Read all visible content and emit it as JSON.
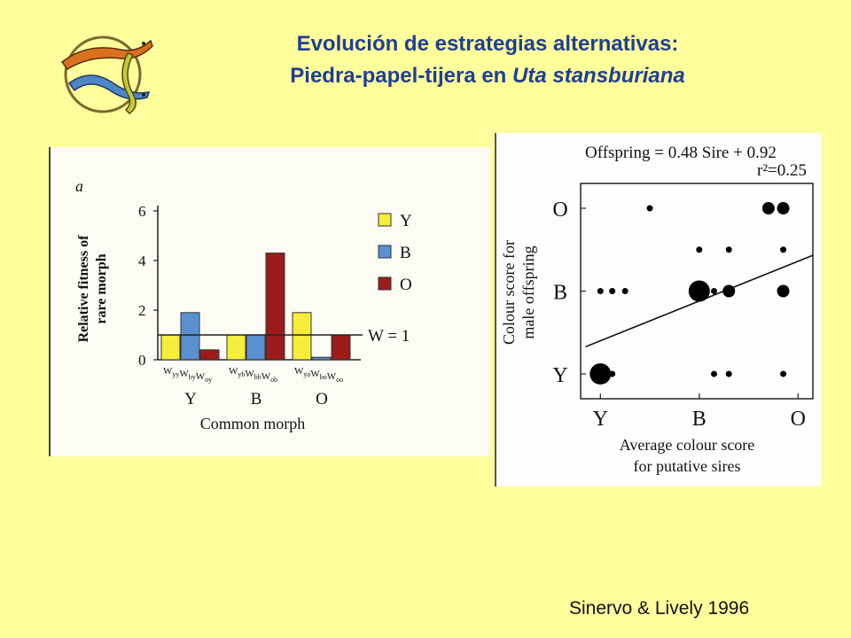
{
  "slide": {
    "title_line1": "Evolución de estrategias alternativas:",
    "title_line2_prefix": "Piedra-papel-tijera en ",
    "title_line2_species": "Uta stansburiana",
    "credit": "Sinervo & Lively 1996",
    "logo_icon": "lizards-logo-icon"
  },
  "chart_data": [
    {
      "type": "bar",
      "panel_label": "a",
      "ylabel_line1": "Relative fitness of",
      "ylabel_line2": "rare morph",
      "xlabel": "Common morph",
      "ylim": [
        0,
        6
      ],
      "yticks": [
        0,
        2,
        4,
        6
      ],
      "groups": [
        "Y",
        "B",
        "O"
      ],
      "bar_labels": [
        [
          "W",
          "yy",
          "W",
          "by",
          "W",
          "oy"
        ],
        [
          "W",
          "yb",
          "W",
          "bb",
          "W",
          "ob"
        ],
        [
          "W",
          "yo",
          "W",
          "bo",
          "W",
          "oo"
        ]
      ],
      "series": [
        {
          "name": "Y",
          "color": "#f6ec3a",
          "values": [
            1.0,
            1.0,
            1.9
          ]
        },
        {
          "name": "B",
          "color": "#5b8fd0",
          "values": [
            1.9,
            1.0,
            0.1
          ]
        },
        {
          "name": "O",
          "color": "#9b1b1b",
          "values": [
            0.4,
            4.3,
            1.0
          ]
        }
      ],
      "reference_line": {
        "value": 1,
        "label": "W = 1"
      }
    },
    {
      "type": "scatter",
      "equation_line1": "Offspring = 0.48 Sire + 0.92",
      "equation_line2": "r²=0.25",
      "ylabel_line1": "Colour score for",
      "ylabel_line2": "male offspring",
      "xlabel_line1": "Average colour score",
      "xlabel_line2": "for putative sires",
      "xticks": [
        "Y",
        "B",
        "O"
      ],
      "yticks": [
        "Y",
        "B",
        "O"
      ],
      "xlim": [
        0.8,
        3.15
      ],
      "ylim": [
        0.7,
        3.3
      ],
      "regression": {
        "slope": 0.48,
        "intercept": 0.92
      },
      "points": [
        {
          "x": 1.0,
          "y": 1.0,
          "size": 3
        },
        {
          "x": 1.12,
          "y": 1.0,
          "size": 1
        },
        {
          "x": 2.15,
          "y": 1.0,
          "size": 1
        },
        {
          "x": 2.3,
          "y": 1.0,
          "size": 1
        },
        {
          "x": 2.85,
          "y": 1.0,
          "size": 1
        },
        {
          "x": 1.0,
          "y": 2.0,
          "size": 1
        },
        {
          "x": 1.12,
          "y": 2.0,
          "size": 1
        },
        {
          "x": 1.25,
          "y": 2.0,
          "size": 1
        },
        {
          "x": 2.0,
          "y": 2.0,
          "size": 3
        },
        {
          "x": 2.15,
          "y": 2.0,
          "size": 1
        },
        {
          "x": 2.3,
          "y": 2.0,
          "size": 2
        },
        {
          "x": 2.85,
          "y": 2.0,
          "size": 2
        },
        {
          "x": 2.0,
          "y": 2.5,
          "size": 1
        },
        {
          "x": 2.3,
          "y": 2.5,
          "size": 1
        },
        {
          "x": 2.85,
          "y": 2.5,
          "size": 1
        },
        {
          "x": 1.5,
          "y": 3.0,
          "size": 1
        },
        {
          "x": 2.7,
          "y": 3.0,
          "size": 2
        },
        {
          "x": 2.85,
          "y": 3.0,
          "size": 2
        }
      ]
    }
  ]
}
